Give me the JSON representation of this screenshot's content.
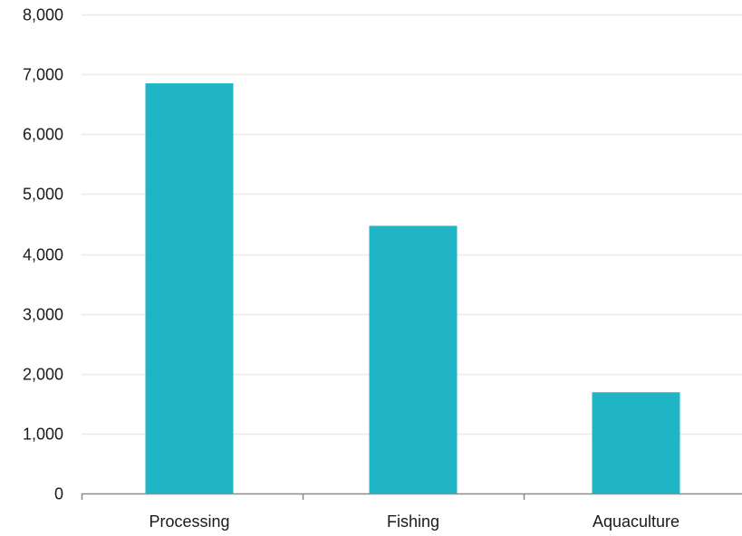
{
  "chart_data": {
    "type": "bar",
    "categories": [
      "Processing",
      "Fishing",
      "Aquaculture"
    ],
    "values": [
      6850,
      4470,
      1690
    ],
    "ylim": [
      0,
      8000
    ],
    "yticks": [
      0,
      1000,
      2000,
      3000,
      4000,
      5000,
      6000,
      7000,
      8000
    ],
    "ytick_labels": [
      "0",
      "1,000",
      "2,000",
      "3,000",
      "4,000",
      "5,000",
      "6,000",
      "7,000",
      "8,000"
    ],
    "title": "",
    "xlabel": "",
    "ylabel": "",
    "grid": true,
    "legend": "none"
  },
  "colors": {
    "bar": "#1fb5c6",
    "grid": "#ebebe3",
    "axis": "#8c8c8c"
  }
}
